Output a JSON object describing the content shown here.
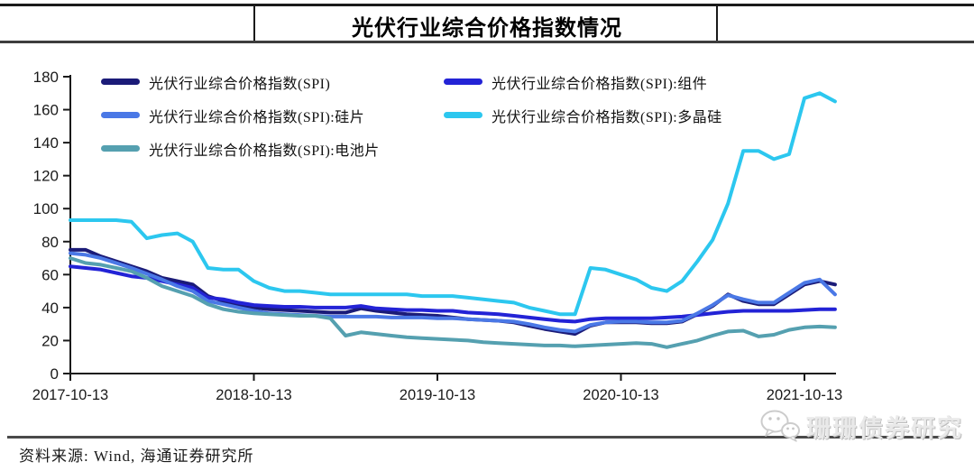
{
  "title": "光伏行业综合价格指数情况",
  "source_note": "资料来源: Wind, 海通证券研究所",
  "watermark": {
    "icon": "wechat-icon",
    "text": "珊珊债券研究"
  },
  "chart_data": {
    "type": "line",
    "title": "光伏行业综合价格指数情况",
    "xlabel": "",
    "ylabel": "",
    "ylim": [
      0,
      180
    ],
    "y_ticks": [
      0,
      20,
      40,
      60,
      80,
      100,
      120,
      140,
      160,
      180
    ],
    "grid": false,
    "legend_position": "top-left two-column",
    "x_unit": "months since 2017-10-13",
    "x_tick_months": [
      0,
      12,
      24,
      36,
      48
    ],
    "x_tick_labels": [
      "2017-10-13",
      "2018-10-13",
      "2019-10-13",
      "2020-10-13",
      "2021-10-13"
    ],
    "x_months": [
      0,
      1,
      2,
      3,
      4,
      5,
      6,
      7,
      8,
      9,
      10,
      11,
      12,
      13,
      14,
      15,
      16,
      17,
      18,
      19,
      20,
      21,
      22,
      23,
      24,
      25,
      26,
      27,
      28,
      29,
      30,
      31,
      32,
      33,
      34,
      35,
      36,
      37,
      38,
      39,
      40,
      41,
      42,
      43,
      44,
      45,
      46,
      47,
      48,
      49,
      50
    ],
    "series": [
      {
        "name": "光伏行业综合价格指数(SPI)",
        "color": "#1b1b78",
        "values": [
          75,
          75,
          71,
          68,
          65,
          62,
          58,
          56,
          54,
          47,
          44,
          42,
          40,
          39,
          38.5,
          38,
          37.5,
          37,
          37,
          39.5,
          38,
          37,
          36,
          35.5,
          35,
          34,
          33,
          32.5,
          32,
          31,
          29,
          27,
          25.5,
          24,
          29,
          31,
          31,
          31,
          30.5,
          30.5,
          31.5,
          36,
          41,
          48,
          44,
          42,
          42,
          48,
          54,
          56,
          54
        ]
      },
      {
        "name": "光伏行业综合价格指数(SPI):组件",
        "color": "#2323d6",
        "values": [
          65,
          64,
          63,
          61,
          59,
          58,
          56,
          54,
          52,
          46,
          45,
          43,
          41.5,
          41,
          40.5,
          40.5,
          40,
          40,
          40,
          41,
          39.5,
          39,
          38.5,
          38.5,
          38,
          38,
          37,
          36.5,
          36,
          35,
          34,
          33,
          32,
          31.5,
          33,
          33.5,
          33.5,
          33.5,
          33.5,
          34,
          34.5,
          35.5,
          36.5,
          37.5,
          38,
          38,
          38,
          38,
          38.5,
          39,
          39
        ]
      },
      {
        "name": "光伏行业综合价格指数(SPI):硅片",
        "color": "#4a78e6",
        "values": [
          73,
          72,
          70,
          67,
          64,
          60.5,
          57,
          53,
          50,
          44,
          42,
          40,
          38,
          36.5,
          36,
          35.5,
          35,
          34.5,
          34.5,
          34.5,
          34.5,
          34,
          34,
          34,
          33.5,
          33.5,
          33,
          32.5,
          32,
          31.5,
          30,
          28,
          26.5,
          25.5,
          29.5,
          31,
          31.5,
          31.5,
          31,
          31,
          32,
          36.5,
          41.5,
          47.5,
          45,
          43,
          43,
          49,
          55,
          57,
          48
        ]
      },
      {
        "name": "光伏行业综合价格指数(SPI):多晶硅",
        "color": "#2cc7ef",
        "values": [
          93,
          93,
          93,
          93,
          92,
          82,
          84,
          85,
          80,
          64,
          63,
          63,
          56,
          52,
          50,
          50,
          49,
          48,
          48,
          48,
          48,
          48,
          48,
          47,
          47,
          47,
          46,
          45,
          44,
          43,
          40,
          38,
          36,
          36,
          64,
          63,
          60,
          57,
          52,
          50,
          56,
          68,
          81,
          103,
          135,
          135,
          130,
          133,
          167,
          170,
          165
        ]
      },
      {
        "name": "光伏行业综合价格指数(SPI):电池片",
        "color": "#55a0b0",
        "values": [
          70,
          67,
          66,
          64,
          62,
          58,
          53,
          50,
          47,
          42,
          39,
          37.5,
          36.5,
          36,
          35.5,
          35,
          35,
          33.5,
          23,
          25,
          24,
          23,
          22,
          21.5,
          21,
          20.5,
          20,
          19,
          18.5,
          18,
          17.5,
          17,
          17,
          16.5,
          17,
          17.5,
          18,
          18.5,
          18,
          16,
          18,
          20,
          23,
          25.5,
          26,
          22.5,
          23.5,
          26.5,
          28,
          28.5,
          28
        ]
      }
    ]
  }
}
